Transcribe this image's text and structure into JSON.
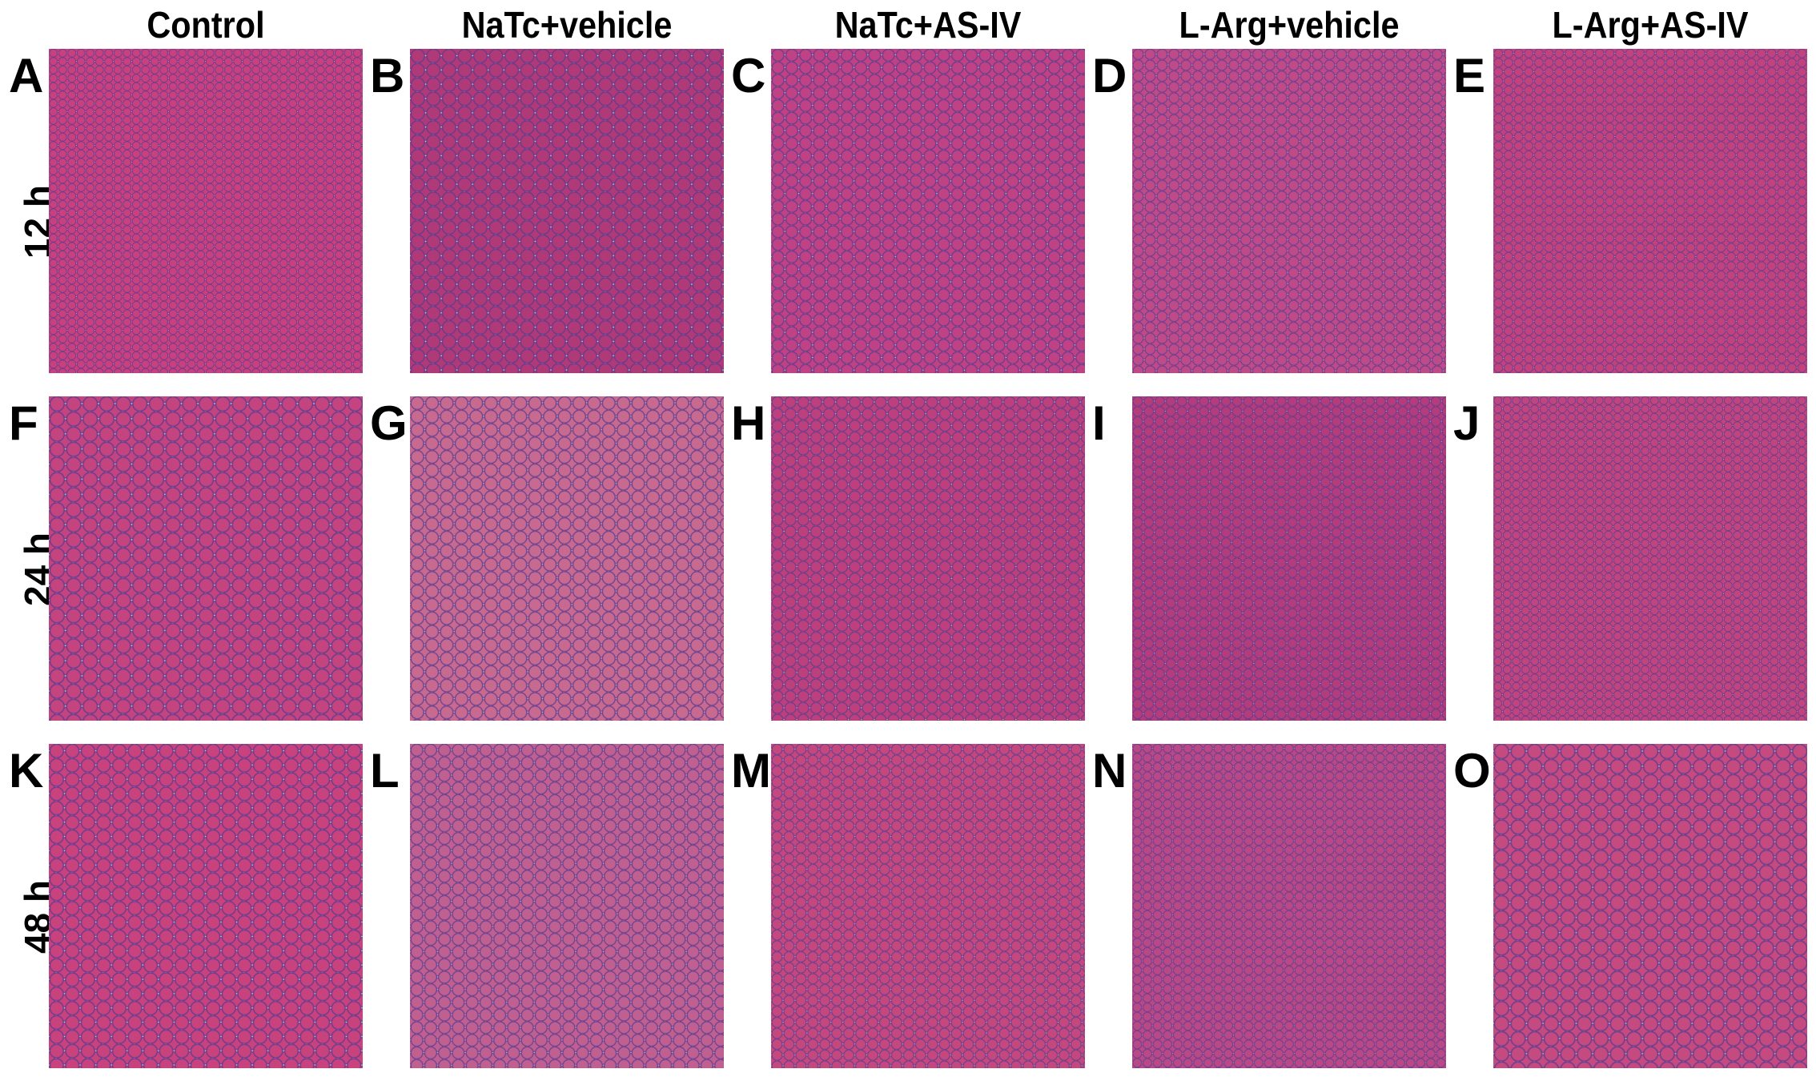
{
  "columns": [
    "Control",
    "NaTc+vehicle",
    "NaTc+AS-IV",
    "L-Arg+vehicle",
    "L-Arg+AS-IV"
  ],
  "rows": [
    "12 h",
    "24 h",
    "48 h"
  ],
  "panels": [
    {
      "letter": "A",
      "bg": "#f4f0b8",
      "tissue": "#c8407e"
    },
    {
      "letter": "B",
      "bg": "#f6efb4",
      "tissue": "#b03a78"
    },
    {
      "letter": "C",
      "bg": "#eef2c0",
      "tissue": "#be4284"
    },
    {
      "letter": "D",
      "bg": "#f1efc2",
      "tissue": "#bf4a88"
    },
    {
      "letter": "E",
      "bg": "#f0efb4",
      "tissue": "#c2427e"
    },
    {
      "letter": "F",
      "bg": "#f2eeba",
      "tissue": "#c4447f"
    },
    {
      "letter": "G",
      "bg": "#d8e6c4",
      "tissue": "#c86a90"
    },
    {
      "letter": "H",
      "bg": "#f3efb8",
      "tissue": "#bc407c"
    },
    {
      "letter": "I",
      "bg": "#d8e8d0",
      "tissue": "#b23c7c"
    },
    {
      "letter": "J",
      "bg": "#f0e6bc",
      "tissue": "#c0447e"
    },
    {
      "letter": "K",
      "bg": "#f2eeb8",
      "tissue": "#c8427e"
    },
    {
      "letter": "L",
      "bg": "#d4e2c0",
      "tissue": "#c06090"
    },
    {
      "letter": "M",
      "bg": "#eef0c0",
      "tissue": "#c4487e"
    },
    {
      "letter": "N",
      "bg": "#d2e4c6",
      "tissue": "#b84886"
    },
    {
      "letter": "O",
      "bg": "#efdcb4",
      "tissue": "#c44a80"
    }
  ]
}
